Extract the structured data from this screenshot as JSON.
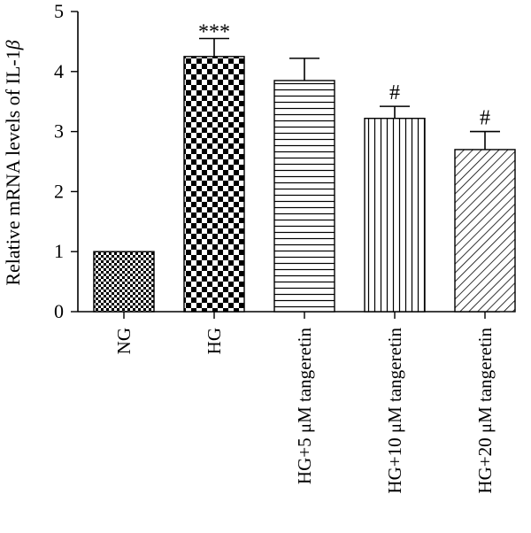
{
  "chart_data": {
    "type": "bar",
    "ylabel_main": "Relative mRNA levels of IL-1",
    "ylabel_symbol": "β",
    "xlabel": "",
    "ylim": [
      0,
      5
    ],
    "yticks": [
      0,
      1,
      2,
      3,
      4,
      5
    ],
    "grid": false,
    "categories": [
      "NG",
      "HG",
      "HG+5 μM tangeretin",
      "HG+10 μM tangeretin",
      "HG+20 μM tangeretin"
    ],
    "values": [
      1.0,
      4.25,
      3.85,
      3.22,
      2.7
    ],
    "errors": [
      0,
      0.3,
      0.37,
      0.2,
      0.3
    ],
    "annotations": [
      "",
      "***",
      "",
      "#",
      "#"
    ],
    "patterns": [
      "fine-checker",
      "coarse-checker",
      "horizontal-lines",
      "vertical-lines",
      "diagonal-lines"
    ]
  }
}
